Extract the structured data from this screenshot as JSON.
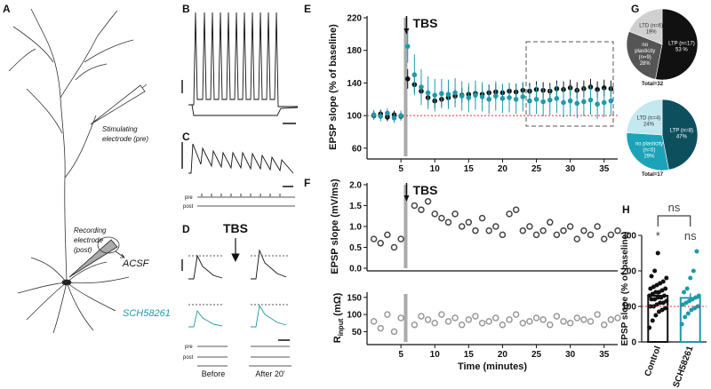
{
  "panel_labels": [
    "A",
    "B",
    "C",
    "D",
    "E",
    "F",
    "G",
    "H"
  ],
  "illustration": {
    "stimulating": [
      "Stimulating",
      "electrode (pre)"
    ],
    "recording": [
      "Recording",
      "electrode",
      "(post)"
    ],
    "acsf": "ACSF",
    "sch": "SCH58261",
    "tbs": "TBS",
    "pre": "pre",
    "post": "post",
    "before": "Before",
    "after": "After 20'"
  },
  "chart_data": [
    {
      "type": "line",
      "ylabel": "EPSP slope (% of baseline)",
      "annotation": "TBS",
      "event_x": 5.7,
      "baseline": 100,
      "x": [
        1,
        2,
        3,
        4,
        5,
        6,
        7,
        8,
        9,
        10,
        11,
        12,
        13,
        14,
        15,
        16,
        17,
        18,
        19,
        20,
        21,
        22,
        23,
        24,
        25,
        26,
        27,
        28,
        29,
        30,
        31,
        32,
        33,
        34,
        35,
        36
      ],
      "series": [
        {
          "color": "#111111",
          "values": [
            100,
            102,
            98,
            101,
            99,
            145,
            138,
            130,
            122,
            118,
            120,
            122,
            124,
            125,
            126,
            127,
            126,
            128,
            129,
            128,
            130,
            129,
            131,
            130,
            132,
            131,
            130,
            133,
            132,
            134,
            131,
            133,
            135,
            132,
            134,
            133
          ],
          "errors": [
            5,
            5,
            5,
            5,
            5,
            12,
            10,
            10,
            9,
            9,
            9,
            9,
            9,
            9,
            9,
            10,
            10,
            10,
            10,
            10,
            10,
            10,
            10,
            10,
            10,
            10,
            10,
            10,
            10,
            10,
            10,
            10,
            10,
            10,
            10,
            10
          ]
        },
        {
          "color": "#1e9aaa",
          "values": [
            101,
            99,
            103,
            97,
            100,
            185,
            150,
            135,
            128,
            125,
            127,
            126,
            128,
            124,
            122,
            125,
            123,
            120,
            124,
            121,
            122,
            120,
            123,
            118,
            120,
            117,
            119,
            121,
            116,
            118,
            115,
            117,
            119,
            114,
            116,
            118
          ],
          "errors": [
            6,
            6,
            6,
            6,
            6,
            20,
            25,
            22,
            20,
            20,
            18,
            18,
            18,
            18,
            18,
            18,
            18,
            18,
            18,
            18,
            18,
            18,
            18,
            18,
            18,
            18,
            18,
            18,
            18,
            18,
            18,
            18,
            18,
            18,
            18,
            18
          ]
        }
      ],
      "xlim": [
        0,
        37
      ],
      "ylim": [
        50,
        220
      ],
      "xticks": [
        5,
        10,
        15,
        20,
        25,
        30,
        35
      ],
      "yticks": [
        60,
        100,
        140,
        180,
        220
      ]
    },
    {
      "type": "scatter",
      "ylabel": "EPSP slope (mV/ms)",
      "annotation": "TBS",
      "event_x": 5.7,
      "x": [
        1,
        2,
        3,
        4,
        5,
        7,
        8,
        9,
        10,
        11,
        12,
        13,
        14,
        15,
        16,
        17,
        18,
        19,
        20,
        21,
        22,
        23,
        24,
        25,
        26,
        27,
        28,
        29,
        30,
        31,
        32,
        33,
        34,
        35,
        36,
        37
      ],
      "series": [
        {
          "color": "#444444",
          "values": [
            0.7,
            0.6,
            0.8,
            0.5,
            0.7,
            1.5,
            1.4,
            1.6,
            1.3,
            1.2,
            1.1,
            1.3,
            1.0,
            1.1,
            0.9,
            1.2,
            0.9,
            1.0,
            0.8,
            1.3,
            1.4,
            0.9,
            1.0,
            0.8,
            0.9,
            1.1,
            0.8,
            0.9,
            1.0,
            0.7,
            0.9,
            0.8,
            1.0,
            0.7,
            0.8,
            0.9
          ]
        }
      ],
      "xlim": [
        0,
        37
      ],
      "ylim": [
        0,
        2
      ],
      "yticks": [
        {
          "value": 0,
          "label": "0.0"
        },
        0.5,
        {
          "value": 1,
          "label": "1.0"
        },
        1.5,
        {
          "value": 2,
          "label": "2.0"
        }
      ]
    },
    {
      "type": "scatter",
      "ylabel": {
        "main": "R",
        "sub": "input",
        "unit": " (mΩ)"
      },
      "xlabel": "Time (minutes)",
      "event_x": 5.7,
      "x": [
        1,
        2,
        3,
        4,
        5,
        7,
        8,
        9,
        10,
        11,
        12,
        13,
        14,
        15,
        16,
        17,
        18,
        19,
        20,
        21,
        22,
        23,
        24,
        25,
        26,
        27,
        28,
        29,
        30,
        31,
        32,
        33,
        34,
        35,
        36,
        37
      ],
      "series": [
        {
          "color": "#999999",
          "values": [
            80,
            60,
            100,
            50,
            90,
            70,
            95,
            85,
            75,
            100,
            80,
            90,
            70,
            85,
            95,
            75,
            80,
            90,
            70,
            85,
            100,
            75,
            80,
            90,
            85,
            70,
            95,
            80,
            75,
            90,
            85,
            80,
            100,
            70,
            85,
            90
          ]
        }
      ],
      "xlim": [
        0,
        37
      ],
      "ylim": [
        20,
        160
      ],
      "xticks": [
        5,
        10,
        15,
        20,
        25,
        30,
        35
      ],
      "yticks": [
        50,
        100,
        150
      ]
    },
    {
      "type": "pie",
      "categories": [
        [
          "LTP (n=17)"
        ],
        [
          "no",
          "plasticity",
          "(n=9)"
        ],
        [
          "LTD (n=6)"
        ]
      ],
      "values": [
        53,
        28,
        19
      ],
      "value_labels": [
        "53 %",
        "28%",
        "19%"
      ],
      "colors": [
        "#111111",
        "#555555",
        "#d0d0d0"
      ],
      "total": "Total=32"
    },
    {
      "type": "pie",
      "categories": [
        [
          "LTP (n=8)"
        ],
        [
          "no plasticity",
          "(n=5)"
        ],
        [
          "LTD (n=4)"
        ]
      ],
      "values": [
        47,
        29,
        24
      ],
      "value_labels": [
        "47%",
        "29%",
        "24%"
      ],
      "colors": [
        "#0e4f5e",
        "#1ba3b8",
        "#c4e8ef"
      ],
      "total": "Total=17"
    },
    {
      "type": "bar",
      "ylabel": "EPSP slope (% of baseline)",
      "categories": [
        "Control",
        "SCH58261"
      ],
      "values": [
        130,
        124
      ],
      "errors": [
        8,
        13
      ],
      "colors": [
        "#111111",
        "#1e9aaa"
      ],
      "points": [
        [
          40,
          60,
          75,
          85,
          90,
          95,
          100,
          100,
          105,
          110,
          110,
          115,
          120,
          120,
          125,
          125,
          130,
          130,
          135,
          140,
          140,
          145,
          150,
          150,
          155,
          160,
          165,
          170,
          180,
          185,
          200,
          250
        ],
        [
          50,
          70,
          80,
          90,
          95,
          100,
          105,
          110,
          115,
          120,
          125,
          130,
          140,
          150,
          180,
          200,
          255
        ]
      ],
      "ylim": [
        0,
        300
      ],
      "yticks": [
        0,
        100,
        200,
        300
      ],
      "baseline": 100,
      "annotations": [
        "*",
        "ns"
      ],
      "comparison": "ns"
    }
  ]
}
